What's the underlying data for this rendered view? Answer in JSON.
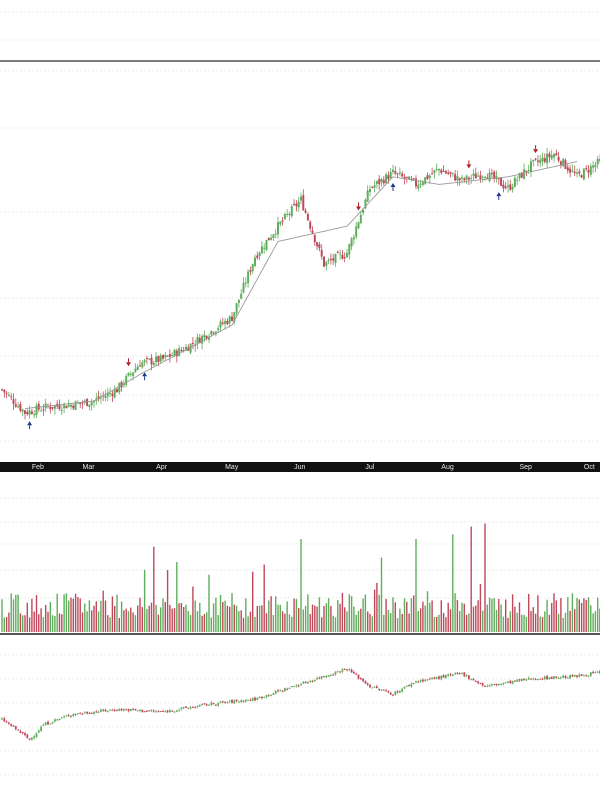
{
  "chart_data": {
    "type": "candlestick",
    "colors": {
      "up": "#5fae5c",
      "down": "#c0485a",
      "ma": "#9a9a9a",
      "buy_signal": "#1f3a8a",
      "sell_signal": "#b3202d",
      "axis_bar": "#111111",
      "grid": "#d9d9d9"
    },
    "grid": true,
    "months": [
      "Feb",
      "Mar",
      "Apr",
      "May",
      "Jun",
      "Jul",
      "Aug",
      "Sep",
      "Oct"
    ],
    "price_panel": {
      "x_day": [
        0,
        10,
        20,
        30,
        40,
        50,
        60,
        70,
        80,
        90,
        100,
        110,
        120,
        130,
        140,
        150,
        160,
        170,
        180,
        190,
        200,
        210,
        220,
        230,
        240,
        250,
        260,
        263
      ],
      "close": [
        100,
        94,
        95.5,
        96,
        97,
        100,
        107,
        108,
        111,
        115,
        119,
        135,
        143,
        150,
        133,
        136,
        153,
        157,
        154,
        158,
        155,
        157,
        153,
        159,
        162,
        156,
        160,
        160
      ],
      "ma_x": [
        10,
        40,
        60,
        100,
        120,
        150,
        170,
        190,
        220,
        250
      ],
      "ma": [
        95,
        97,
        104,
        117,
        139,
        143,
        156,
        154,
        156,
        160
      ],
      "buy_signals": [
        12,
        62,
        170,
        216
      ],
      "sell_signals": [
        55,
        155,
        203,
        232
      ]
    },
    "volume_panel": {
      "typical": 18,
      "spikes": [
        {
          "day": 66,
          "value": 55
        },
        {
          "day": 72,
          "value": 40
        },
        {
          "day": 130,
          "value": 60
        },
        {
          "day": 165,
          "value": 48
        },
        {
          "day": 180,
          "value": 60
        },
        {
          "day": 196,
          "value": 63
        },
        {
          "day": 204,
          "value": 68
        },
        {
          "day": 210,
          "value": 70
        }
      ]
    },
    "relative_panel": {
      "x_day": [
        0,
        8,
        12,
        18,
        30,
        50,
        70,
        90,
        110,
        120,
        130,
        150,
        160,
        170,
        180,
        200,
        210,
        230,
        250,
        263
      ],
      "value": [
        100,
        95,
        92,
        98,
        102,
        104,
        103,
        106,
        108,
        111,
        114,
        120,
        113,
        110,
        115,
        118,
        113,
        116,
        117,
        119
      ]
    }
  }
}
